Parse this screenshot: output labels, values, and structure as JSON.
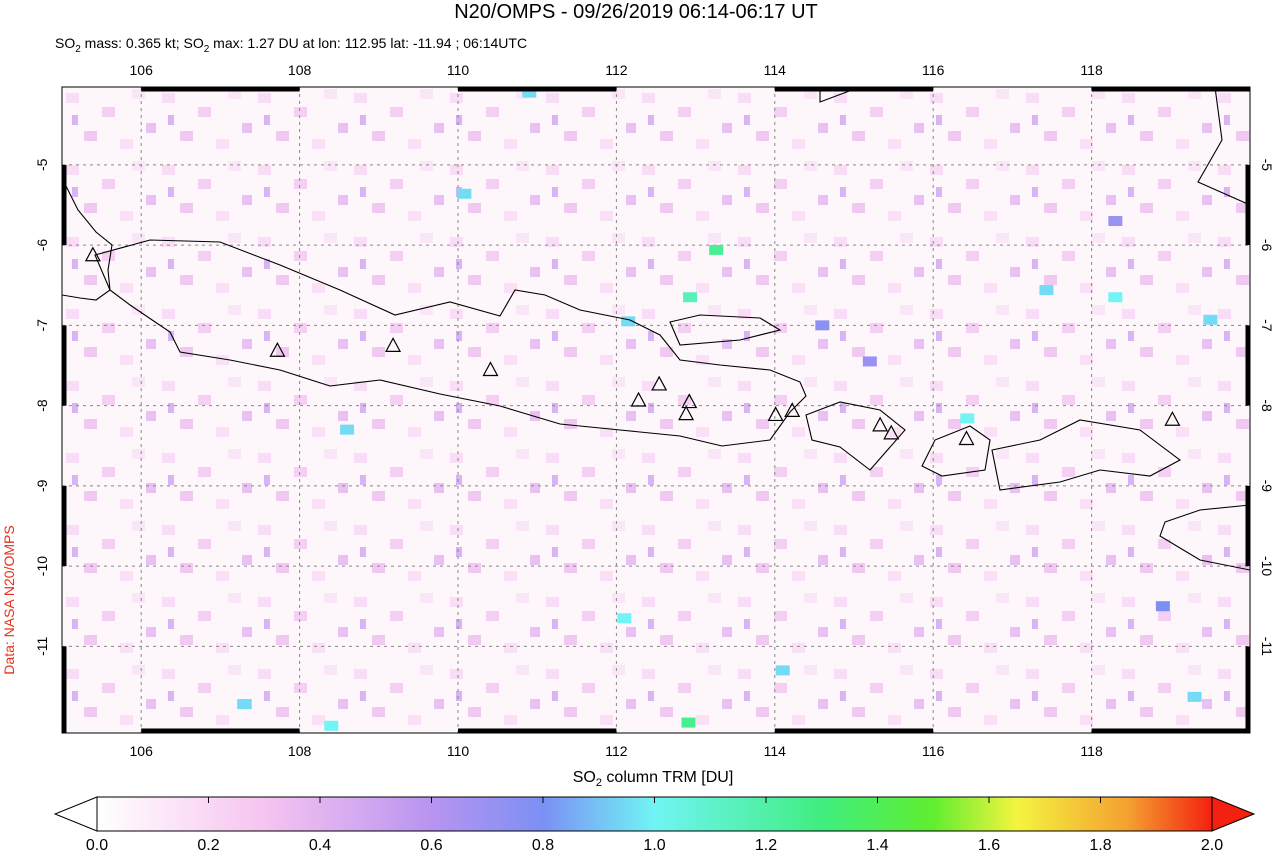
{
  "chart_data": {
    "type": "map",
    "title": "N20/OMPS - 09/26/2019 06:14-06:17 UT",
    "subtitle": [
      "SO",
      "2",
      " mass: 0.365 kt; SO",
      "2",
      " max: 1.27 DU at lon: 112.95 lat: -11.94 ; 06:14UTC"
    ],
    "credit": "Data: NASA N20/OMPS",
    "xlim": [
      105,
      120
    ],
    "ylim": [
      -12.08,
      -4.03
    ],
    "xticks": [
      106,
      108,
      110,
      112,
      114,
      116,
      118
    ],
    "yticks": [
      -5,
      -6,
      -7,
      -8,
      -9,
      -10,
      -11
    ],
    "grid": true,
    "pixels": {
      "lon": [
        113.26,
        112.93,
        112.91,
        117.43,
        118.3,
        119.5,
        116.43,
        110.08,
        112.1,
        107.3,
        108.4,
        114.1,
        119.3,
        118.9,
        108.6,
        110.9,
        112.15,
        114.6,
        115.2,
        118.3
      ],
      "lat": [
        -6.06,
        -6.65,
        -11.95,
        -6.56,
        -6.65,
        -6.93,
        -8.16,
        -5.36,
        -10.65,
        -11.72,
        -11.99,
        -11.3,
        -11.63,
        -10.5,
        -8.3,
        -4.1,
        -6.95,
        -7.0,
        -7.45,
        -5.7
      ],
      "values": [
        1.25,
        1.15,
        1.27,
        0.95,
        1.0,
        0.95,
        1.0,
        0.95,
        1.0,
        0.95,
        1.0,
        0.95,
        0.95,
        0.8,
        0.95,
        0.95,
        0.95,
        0.75,
        0.7,
        0.7
      ]
    },
    "volcanoes": {
      "lon": [
        105.39,
        107.72,
        109.18,
        110.41,
        112.28,
        112.54,
        112.92,
        112.88,
        114.01,
        114.22,
        115.33,
        115.47,
        116.42,
        119.02
      ],
      "lat": [
        -6.12,
        -7.31,
        -7.25,
        -7.55,
        -7.93,
        -7.73,
        -7.95,
        -8.1,
        -8.11,
        -8.06,
        -8.24,
        -8.34,
        -8.41,
        -8.17
      ]
    },
    "colorbar": {
      "label": [
        "SO",
        "2",
        " column TRM [DU]"
      ],
      "lim": [
        0,
        2
      ],
      "ticks": [
        {
          "value": 0,
          "label": "0.0"
        },
        0.2,
        0.4,
        0.6,
        0.8,
        {
          "value": 1,
          "label": "1.0"
        },
        1.2,
        1.4,
        1.6,
        1.8,
        {
          "value": 2,
          "label": "2.0"
        }
      ],
      "stops": [
        {
          "value": 0,
          "color": "#ffffff"
        },
        {
          "value": 0.3,
          "color": "#f6c4f0"
        },
        {
          "value": 0.6,
          "color": "#b894f0"
        },
        {
          "value": 0.8,
          "color": "#7c90f4"
        },
        {
          "value": 1.0,
          "color": "#70f4f4"
        },
        {
          "value": 1.3,
          "color": "#40ee80"
        },
        {
          "value": 1.5,
          "color": "#60ee30"
        },
        {
          "value": 1.65,
          "color": "#f4f440"
        },
        {
          "value": 1.85,
          "color": "#f4a030"
        },
        {
          "value": 2.0,
          "color": "#f42010"
        }
      ]
    }
  }
}
